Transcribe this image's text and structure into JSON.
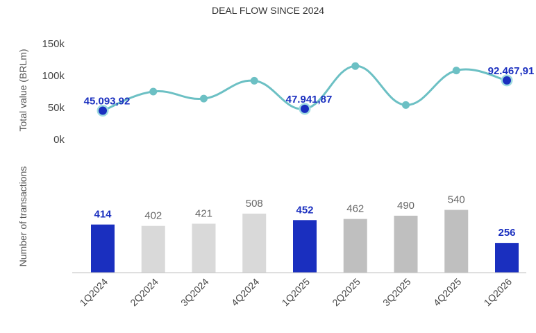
{
  "chart_data": {
    "type": "line+bar",
    "title": "DEAL FLOW SINCE 2024",
    "categories": [
      "1Q2024",
      "2Q2024",
      "3Q2024",
      "4Q2024",
      "1Q2025",
      "2Q2025",
      "3Q2025",
      "4Q2025",
      "1Q2026"
    ],
    "line": {
      "ylabel": "Total value (BRLm)",
      "ylim": [
        0,
        150000
      ],
      "yticks": [
        "0k",
        "50k",
        "100k",
        "150k"
      ],
      "values": [
        45093.92,
        75000,
        64000,
        92000,
        47941.87,
        115000,
        54000,
        108000,
        92467.91
      ],
      "highlight_indices": [
        0,
        4,
        8
      ],
      "labels": [
        "45.093,92",
        "",
        "",
        "",
        "47.941,87",
        "",
        "",
        "",
        "92.467,91"
      ],
      "line_color": "#6cc0c4",
      "highlight_color": "#1a2fbf"
    },
    "bars": {
      "ylabel": "Number of transactions",
      "values": [
        414,
        402,
        421,
        508,
        452,
        462,
        490,
        540,
        256
      ],
      "labels": [
        "414",
        "402",
        "421",
        "508",
        "452",
        "462",
        "490",
        "540",
        "256"
      ],
      "highlight_indices": [
        0,
        4,
        8
      ],
      "colors": [
        "#1a2fbf",
        "#d9d9d9",
        "#d9d9d9",
        "#d9d9d9",
        "#1a2fbf",
        "#bfbfbf",
        "#bfbfbf",
        "#bfbfbf",
        "#1a2fbf"
      ]
    }
  }
}
